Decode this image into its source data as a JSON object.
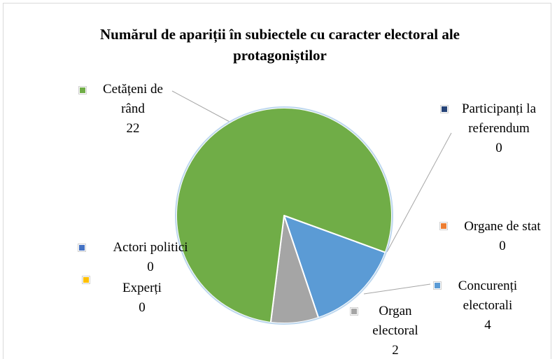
{
  "chart_data": {
    "type": "pie",
    "title": "Numărul de apariții în subiectele cu caracter electoral ale protagoniștilor",
    "categories": [
      "Actori politici",
      "Experți",
      "Participanți la referendum",
      "Organe de stat",
      "Concurenți electorali",
      "Organ electoral",
      "Cetățeni de rând"
    ],
    "values": [
      0,
      0,
      0,
      0,
      4,
      2,
      22
    ],
    "colors": [
      "#4472c4",
      "#ffc000",
      "#264478",
      "#ed7d31",
      "#5b9bd5",
      "#a5a5a5",
      "#70ad47"
    ],
    "start_angle": 110
  }
}
